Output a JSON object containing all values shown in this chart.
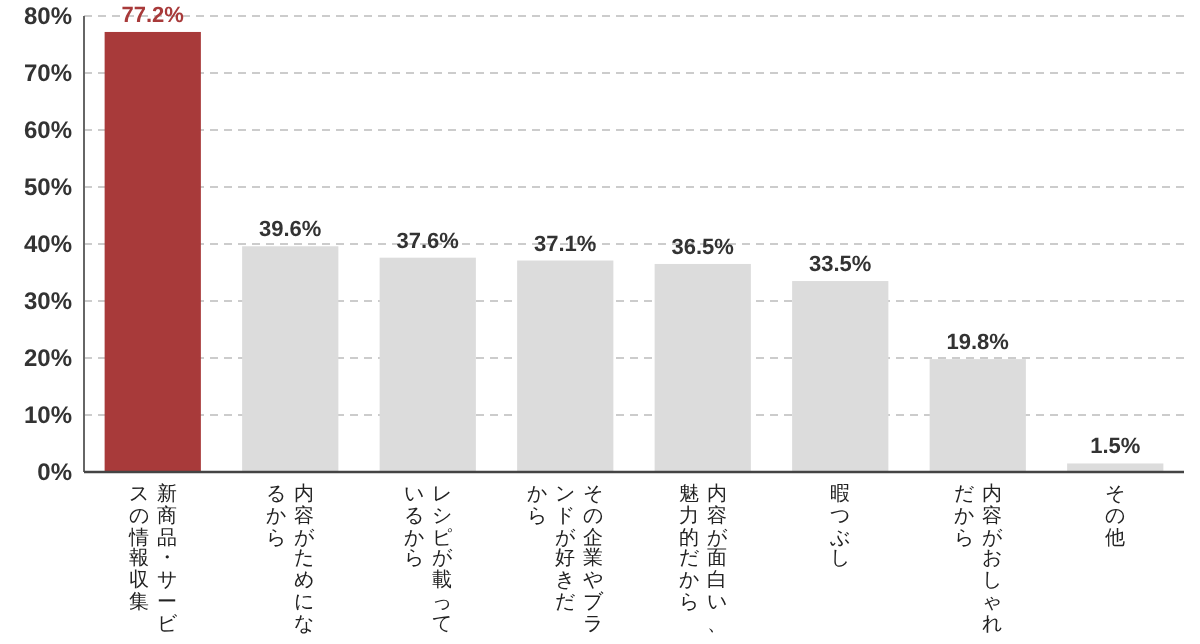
{
  "chart_data": {
    "type": "bar",
    "categories": [
      "新商品・サービスの情報収集",
      "内容がためになるから",
      "レシピが載っているから",
      "その企業やブランドが好きだから",
      "内容が面白い、魅力的だから",
      "暇つぶし",
      "内容がおしゃれだから",
      "その他"
    ],
    "values": [
      77.2,
      39.6,
      37.6,
      37.1,
      36.5,
      33.5,
      19.8,
      1.5
    ],
    "colors": [
      "#a83a3a",
      "#dcdcdc",
      "#dcdcdc",
      "#dcdcdc",
      "#dcdcdc",
      "#dcdcdc",
      "#dcdcdc",
      "#dcdcdc"
    ],
    "value_labels": [
      "77.2%",
      "39.6%",
      "37.6%",
      "37.1%",
      "36.5%",
      "33.5%",
      "19.8%",
      "1.5%"
    ],
    "ylim": [
      0,
      80
    ],
    "yticks": [
      {
        "value": 0,
        "label": "0%"
      },
      {
        "value": 10,
        "label": "10%"
      },
      {
        "value": 20,
        "label": "20%"
      },
      {
        "value": 30,
        "label": "30%"
      },
      {
        "value": 40,
        "label": "40%"
      },
      {
        "value": 50,
        "label": "50%"
      },
      {
        "value": 60,
        "label": "60%"
      },
      {
        "value": 70,
        "label": "70%"
      },
      {
        "value": 80,
        "label": "80%"
      }
    ],
    "grid": "y"
  }
}
